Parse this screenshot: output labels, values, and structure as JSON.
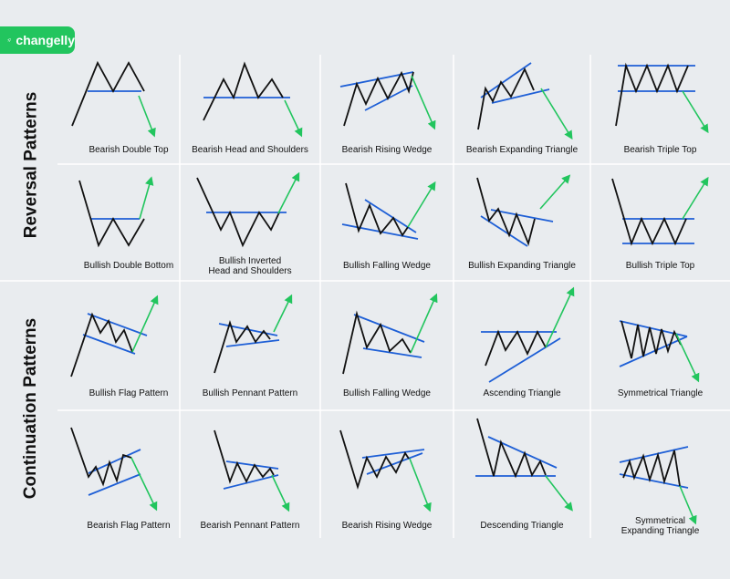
{
  "brand": {
    "name": "changelly",
    "icon": "rocket-icon"
  },
  "sections": [
    {
      "title": "Reversal Patterns"
    },
    {
      "title": "Continuation Patterns"
    }
  ],
  "colors": {
    "price": "#111111",
    "trendline": "#1e5fd6",
    "arrow": "#22c55e",
    "logo_bg": "#22c55e"
  },
  "patterns": [
    {
      "name": "Bearish Double Top"
    },
    {
      "name": "Bearish Head and Shoulders"
    },
    {
      "name": "Bearish Rising Wedge"
    },
    {
      "name": "Bearish Expanding Triangle"
    },
    {
      "name": "Bearish Triple Top"
    },
    {
      "name": "Bullish Double Bottom"
    },
    {
      "name": "Bullish Inverted\nHead and Shoulders"
    },
    {
      "name": "Bullish Falling Wedge"
    },
    {
      "name": "Bullish Expanding Triangle"
    },
    {
      "name": "Bullish Triple Top"
    },
    {
      "name": "Bullish Flag Pattern"
    },
    {
      "name": "Bullish Pennant Pattern"
    },
    {
      "name": "Bullish Falling Wedge"
    },
    {
      "name": "Ascending Triangle"
    },
    {
      "name": "Symmetrical Triangle"
    },
    {
      "name": "Bearish Flag Pattern"
    },
    {
      "name": "Bearish Pennant Pattern"
    },
    {
      "name": "Bearish Rising Wedge"
    },
    {
      "name": "Descending Triangle"
    },
    {
      "name": "Symmetrical\nExpanding Triangle"
    }
  ]
}
